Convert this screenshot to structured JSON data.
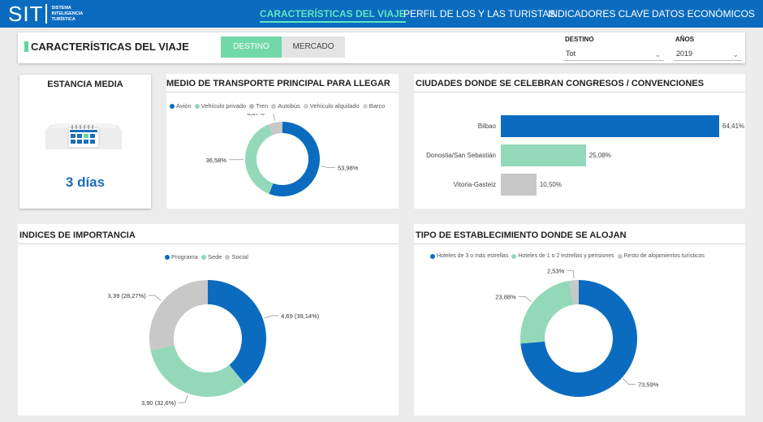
{
  "logo": {
    "mark": "SIT",
    "line1": "SISTEMA",
    "line2": "INTELIGENCIA",
    "line3": "TURÍSTICA"
  },
  "nav": [
    {
      "label": "CARACTERÍSTICAS DEL VIAJE",
      "active": true
    },
    {
      "label": "PERFIL DE LOS Y LAS TURISTAS",
      "active": false
    },
    {
      "label": "INDICADORES CLAVE",
      "active": false
    },
    {
      "label": "DATOS ECONÓMICOS",
      "active": false
    }
  ],
  "header": {
    "title": "CARACTERÍSTICAS DEL VIAJE",
    "toggle_on": "DESTINO",
    "toggle_off": "MERCADO",
    "destino_label": "DESTINO",
    "destino_value": "Tot",
    "anos_label": "AÑOS",
    "anos_value": "2019"
  },
  "kpi": {
    "title": "ESTANCIA MEDIA",
    "value": "3 días",
    "icon": "calendar-icon"
  },
  "colors": {
    "blue": "#0b6cbf",
    "green": "#93d9b9",
    "gray": "#c8c8c8",
    "nav_active": "#5fe3c0"
  },
  "transport": {
    "title": "MEDIO DE TRANSPORTE PRINCIPAL PARA LLEGAR",
    "legend": [
      "Avión",
      "Vehículo privado",
      "Tren",
      "Autobús",
      "Vehículo alquilado",
      "Barco"
    ],
    "legend_colors": [
      "#0b6cbf",
      "#93d9b9",
      "#b8b8b8",
      "#c8c8c8",
      "#cfcfcf",
      "#d4d4d4"
    ],
    "chart_data": {
      "type": "pie",
      "labels": [
        "Avión",
        "Vehículo privado",
        "Tren"
      ],
      "values": [
        53.98,
        36.58,
        6.07
      ],
      "display": [
        "53,98%",
        "36,58%",
        "6,07%"
      ]
    }
  },
  "cities": {
    "title": "CIUDADES DONDE SE CELEBRAN CONGRESOS / CONVENCIONES",
    "chart_data": {
      "type": "bar",
      "categories": [
        "Bilbao",
        "Donostia/San Sebastián",
        "Vitoria-Gasteiz"
      ],
      "values": [
        64.41,
        25.08,
        10.5
      ],
      "display": [
        "64,41%",
        "25,08%",
        "10,50%"
      ],
      "colors": [
        "#0b6cbf",
        "#93d9b9",
        "#c8c8c8"
      ]
    }
  },
  "importance": {
    "title": "INDICES DE IMPORTANCIA",
    "legend": [
      "Programa",
      "Sede",
      "Social"
    ],
    "chart_data": {
      "type": "pie",
      "labels": [
        "Programa",
        "Sede",
        "Social"
      ],
      "values": [
        4.69,
        3.9,
        3.39
      ],
      "display": [
        "4,69 (39,14%)",
        "3,90 (32,6%)",
        "3,39 (28,27%)"
      ]
    }
  },
  "lodging": {
    "title": "TIPO DE ESTABLECIMIENTO DONDE SE ALOJAN",
    "legend": [
      "Hoteles de 3 o más estrellas",
      "Hoteles de 1 o 2 estrellas y pensiones",
      "Resto de alojamientos turísticos"
    ],
    "chart_data": {
      "type": "pie",
      "labels": [
        "Hoteles de 3 o más estrellas",
        "Hoteles de 1 o 2 estrellas y pensiones",
        "Resto de alojamientos turísticos"
      ],
      "values": [
        73.59,
        23.88,
        2.53
      ],
      "display": [
        "73,59%",
        "23,88%",
        "2,53%"
      ]
    }
  }
}
